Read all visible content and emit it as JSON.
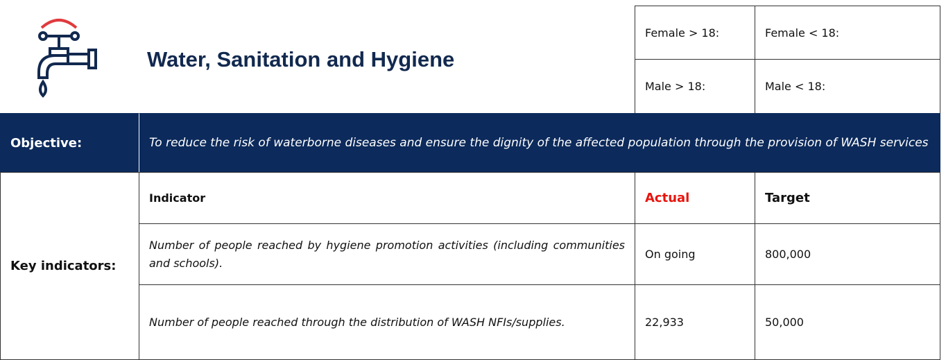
{
  "header": {
    "title": "Water, Sanitation and Hygiene",
    "fields": [
      "Female > 18:",
      "Female < 18:",
      "Male > 18:",
      "Male < 18:"
    ]
  },
  "objective": {
    "label": "Objective:",
    "text": "To reduce the risk of waterborne diseases and ensure the dignity of the affected population through the provision of WASH services"
  },
  "indicators": {
    "label": "Key indicators:",
    "columns": [
      "Indicator",
      "Actual",
      "Target"
    ],
    "rows": [
      [
        "Number of people reached by hygiene promotion activities (including communities and schools).",
        "On going",
        "800,000"
      ],
      [
        "Number of people reached through the distribution of WASH NFIs/supplies.",
        "22,933",
        "50,000"
      ]
    ]
  }
}
